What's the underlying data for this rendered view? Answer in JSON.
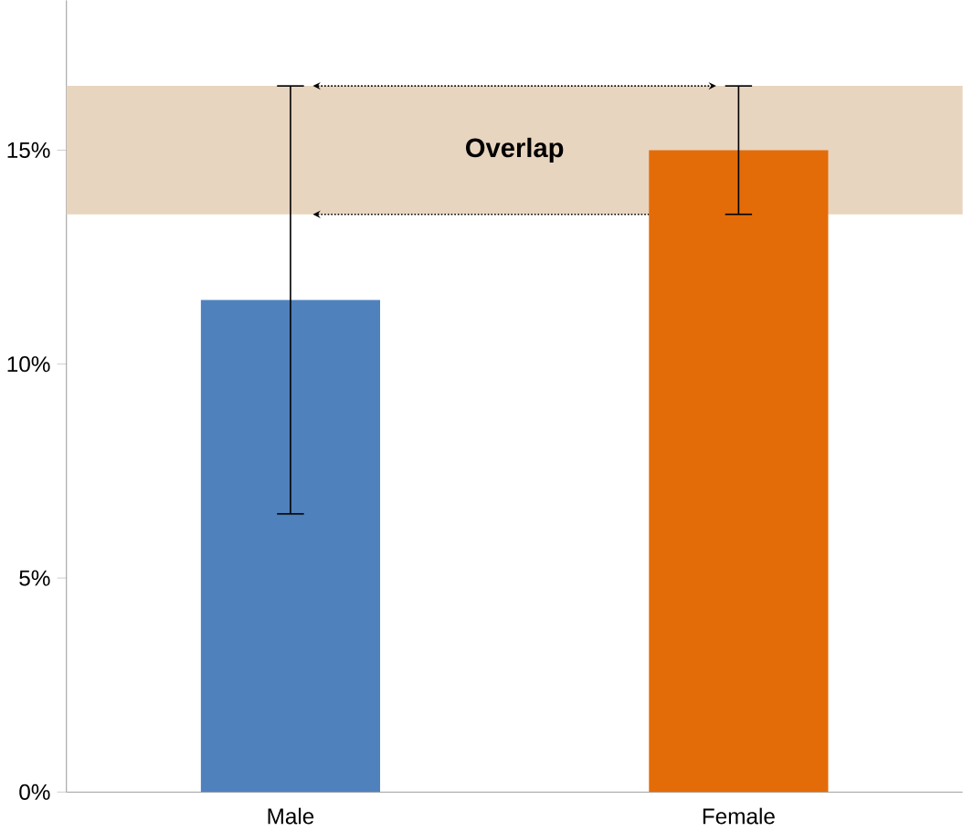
{
  "chart_data": {
    "type": "bar",
    "categories": [
      "Male",
      "Female"
    ],
    "values": [
      11.5,
      15
    ],
    "colors": [
      "#4f81bd",
      "#e36c09"
    ],
    "errors": [
      [
        6.5,
        16.5
      ],
      [
        13.5,
        16.5
      ]
    ],
    "ylim": [
      0,
      18.5
    ],
    "yticks": [
      {
        "value": 0,
        "label": "0%"
      },
      {
        "value": 5,
        "label": "5%"
      },
      {
        "value": 10,
        "label": "10%"
      },
      {
        "value": 15,
        "label": "15%"
      }
    ],
    "bands": [
      {
        "axis": "y",
        "from": 13.5,
        "to": 16.5,
        "label": "Overlap",
        "color": "#e8d5bf"
      }
    ],
    "grid": false
  }
}
